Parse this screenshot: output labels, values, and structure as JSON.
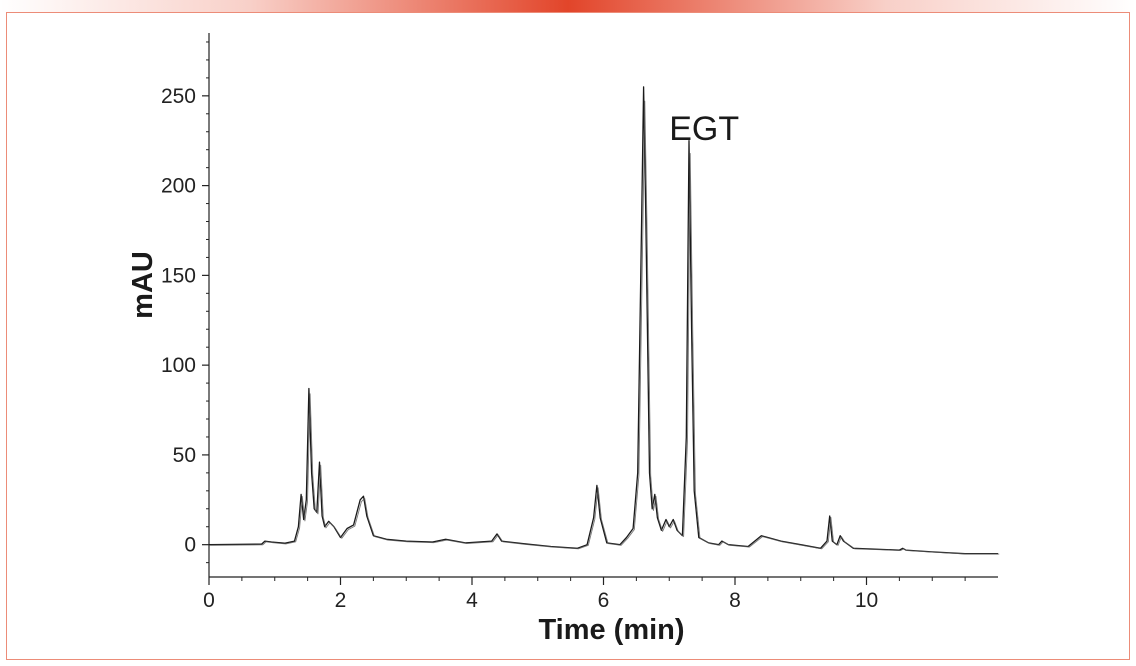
{
  "colors": {
    "accent_bar": "#e2452a",
    "frame_border": "#ec8c78",
    "trace": "#1a1a1a",
    "axis": "#222222"
  },
  "chart_data": {
    "type": "line",
    "title": "",
    "xlabel": "Time (min)",
    "ylabel": "mAU",
    "xlim": [
      0,
      12
    ],
    "ylim": [
      -18,
      285
    ],
    "x_ticks": [
      0,
      2,
      4,
      6,
      8,
      10
    ],
    "y_ticks": [
      0,
      50,
      100,
      150,
      200,
      250
    ],
    "grid": false,
    "legend": "none",
    "annotations": [
      {
        "text": "EGT",
        "x": 7.0,
        "y": 232
      }
    ],
    "series": [
      {
        "points": [
          [
            0,
            0
          ],
          [
            0.8,
            0.3
          ],
          [
            0.85,
            2
          ],
          [
            0.95,
            1.5
          ],
          [
            1.15,
            0.8
          ],
          [
            1.3,
            2
          ],
          [
            1.36,
            10
          ],
          [
            1.4,
            28
          ],
          [
            1.44,
            14
          ],
          [
            1.48,
            25
          ],
          [
            1.52,
            87
          ],
          [
            1.56,
            40
          ],
          [
            1.6,
            20
          ],
          [
            1.64,
            18
          ],
          [
            1.68,
            46
          ],
          [
            1.72,
            16
          ],
          [
            1.76,
            10
          ],
          [
            1.82,
            13
          ],
          [
            1.9,
            10
          ],
          [
            2.0,
            4
          ],
          [
            2.1,
            9
          ],
          [
            2.2,
            11
          ],
          [
            2.3,
            25
          ],
          [
            2.35,
            27
          ],
          [
            2.4,
            16
          ],
          [
            2.5,
            5
          ],
          [
            2.7,
            3
          ],
          [
            3.0,
            2
          ],
          [
            3.4,
            1.5
          ],
          [
            3.6,
            3
          ],
          [
            3.9,
            1
          ],
          [
            4.3,
            2
          ],
          [
            4.38,
            6
          ],
          [
            4.45,
            2
          ],
          [
            4.8,
            0.5
          ],
          [
            5.2,
            -1
          ],
          [
            5.6,
            -2
          ],
          [
            5.75,
            0
          ],
          [
            5.85,
            15
          ],
          [
            5.9,
            33
          ],
          [
            5.95,
            15
          ],
          [
            6.05,
            1
          ],
          [
            6.25,
            0
          ],
          [
            6.35,
            4
          ],
          [
            6.45,
            9
          ],
          [
            6.52,
            40
          ],
          [
            6.58,
            180
          ],
          [
            6.61,
            255
          ],
          [
            6.64,
            190
          ],
          [
            6.7,
            40
          ],
          [
            6.74,
            20
          ],
          [
            6.78,
            28
          ],
          [
            6.82,
            15
          ],
          [
            6.88,
            8
          ],
          [
            6.95,
            14
          ],
          [
            7.0,
            10
          ],
          [
            7.06,
            14
          ],
          [
            7.12,
            8
          ],
          [
            7.2,
            5
          ],
          [
            7.26,
            60
          ],
          [
            7.3,
            225
          ],
          [
            7.34,
            120
          ],
          [
            7.38,
            30
          ],
          [
            7.45,
            4
          ],
          [
            7.6,
            1
          ],
          [
            7.75,
            0
          ],
          [
            7.8,
            2
          ],
          [
            7.9,
            0
          ],
          [
            8.2,
            -1
          ],
          [
            8.4,
            5
          ],
          [
            8.5,
            4
          ],
          [
            8.7,
            2
          ],
          [
            9.0,
            0
          ],
          [
            9.3,
            -2
          ],
          [
            9.4,
            2
          ],
          [
            9.44,
            16
          ],
          [
            9.48,
            2
          ],
          [
            9.55,
            0
          ],
          [
            9.6,
            5
          ],
          [
            9.65,
            2
          ],
          [
            9.8,
            -2
          ],
          [
            10.5,
            -3
          ],
          [
            10.55,
            -2
          ],
          [
            10.6,
            -3
          ],
          [
            11.0,
            -4
          ],
          [
            11.5,
            -5
          ],
          [
            12,
            -5
          ]
        ]
      }
    ]
  }
}
